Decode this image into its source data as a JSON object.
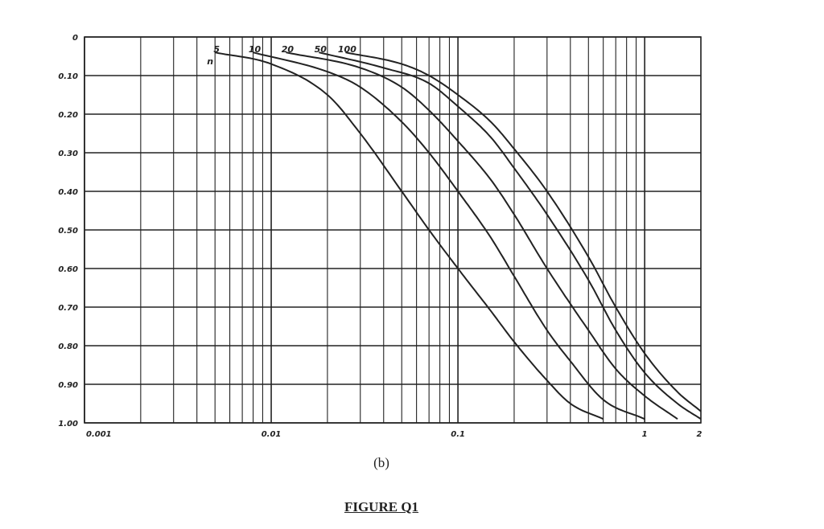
{
  "chart_data": {
    "type": "line",
    "x_scale": "log",
    "xlim": [
      0.001,
      2
    ],
    "ylim": [
      0,
      1.0
    ],
    "y_inverted": true,
    "grid": true,
    "x_tick_labels": [
      {
        "value": 0.001,
        "label": "0.001"
      },
      {
        "value": 0.01,
        "label": "0.01"
      },
      {
        "value": 0.1,
        "label": "0.1"
      },
      {
        "value": 1,
        "label": "1"
      },
      {
        "value": 2,
        "label": "2"
      }
    ],
    "y_tick_labels": [
      {
        "value": 0,
        "label": "0"
      },
      {
        "value": 0.1,
        "label": "0.10"
      },
      {
        "value": 0.2,
        "label": "0.20"
      },
      {
        "value": 0.3,
        "label": "0.30"
      },
      {
        "value": 0.4,
        "label": "0.40"
      },
      {
        "value": 0.5,
        "label": "0.50"
      },
      {
        "value": 0.6,
        "label": "0.60"
      },
      {
        "value": 0.7,
        "label": "0.70"
      },
      {
        "value": 0.8,
        "label": "0.80"
      },
      {
        "value": 0.9,
        "label": "0.90"
      },
      {
        "value": 1.0,
        "label": "1.00"
      }
    ],
    "curve_parameter_label": "n",
    "series": [
      {
        "name": "5",
        "points": [
          [
            0.005,
            0.04
          ],
          [
            0.01,
            0.07
          ],
          [
            0.02,
            0.15
          ],
          [
            0.03,
            0.25
          ],
          [
            0.05,
            0.4
          ],
          [
            0.07,
            0.5
          ],
          [
            0.1,
            0.6
          ],
          [
            0.15,
            0.71
          ],
          [
            0.2,
            0.79
          ],
          [
            0.3,
            0.89
          ],
          [
            0.4,
            0.95
          ],
          [
            0.6,
            0.99
          ]
        ]
      },
      {
        "name": "10",
        "points": [
          [
            0.008,
            0.04
          ],
          [
            0.02,
            0.09
          ],
          [
            0.03,
            0.13
          ],
          [
            0.05,
            0.22
          ],
          [
            0.07,
            0.3
          ],
          [
            0.1,
            0.4
          ],
          [
            0.15,
            0.52
          ],
          [
            0.2,
            0.62
          ],
          [
            0.3,
            0.76
          ],
          [
            0.4,
            0.84
          ],
          [
            0.6,
            0.94
          ],
          [
            1.0,
            0.99
          ]
        ]
      },
      {
        "name": "20",
        "points": [
          [
            0.012,
            0.04
          ],
          [
            0.03,
            0.08
          ],
          [
            0.05,
            0.13
          ],
          [
            0.07,
            0.19
          ],
          [
            0.1,
            0.27
          ],
          [
            0.15,
            0.37
          ],
          [
            0.2,
            0.46
          ],
          [
            0.3,
            0.6
          ],
          [
            0.5,
            0.76
          ],
          [
            0.7,
            0.86
          ],
          [
            1.0,
            0.93
          ],
          [
            1.5,
            0.99
          ]
        ]
      },
      {
        "name": "50",
        "points": [
          [
            0.018,
            0.04
          ],
          [
            0.04,
            0.08
          ],
          [
            0.07,
            0.12
          ],
          [
            0.1,
            0.18
          ],
          [
            0.15,
            0.26
          ],
          [
            0.2,
            0.34
          ],
          [
            0.3,
            0.46
          ],
          [
            0.5,
            0.63
          ],
          [
            0.7,
            0.76
          ],
          [
            1.0,
            0.87
          ],
          [
            1.5,
            0.95
          ],
          [
            2.0,
            0.99
          ]
        ]
      },
      {
        "name": "100",
        "points": [
          [
            0.025,
            0.04
          ],
          [
            0.05,
            0.07
          ],
          [
            0.07,
            0.1
          ],
          [
            0.1,
            0.15
          ],
          [
            0.15,
            0.22
          ],
          [
            0.2,
            0.29
          ],
          [
            0.3,
            0.4
          ],
          [
            0.5,
            0.57
          ],
          [
            0.7,
            0.7
          ],
          [
            1.0,
            0.82
          ],
          [
            1.5,
            0.92
          ],
          [
            2.0,
            0.97
          ]
        ]
      }
    ]
  },
  "caption": {
    "panel_label": "(b)",
    "figure_title": "FIGURE Q1"
  },
  "colors": {
    "ink": "#222222",
    "background": "#ffffff"
  }
}
